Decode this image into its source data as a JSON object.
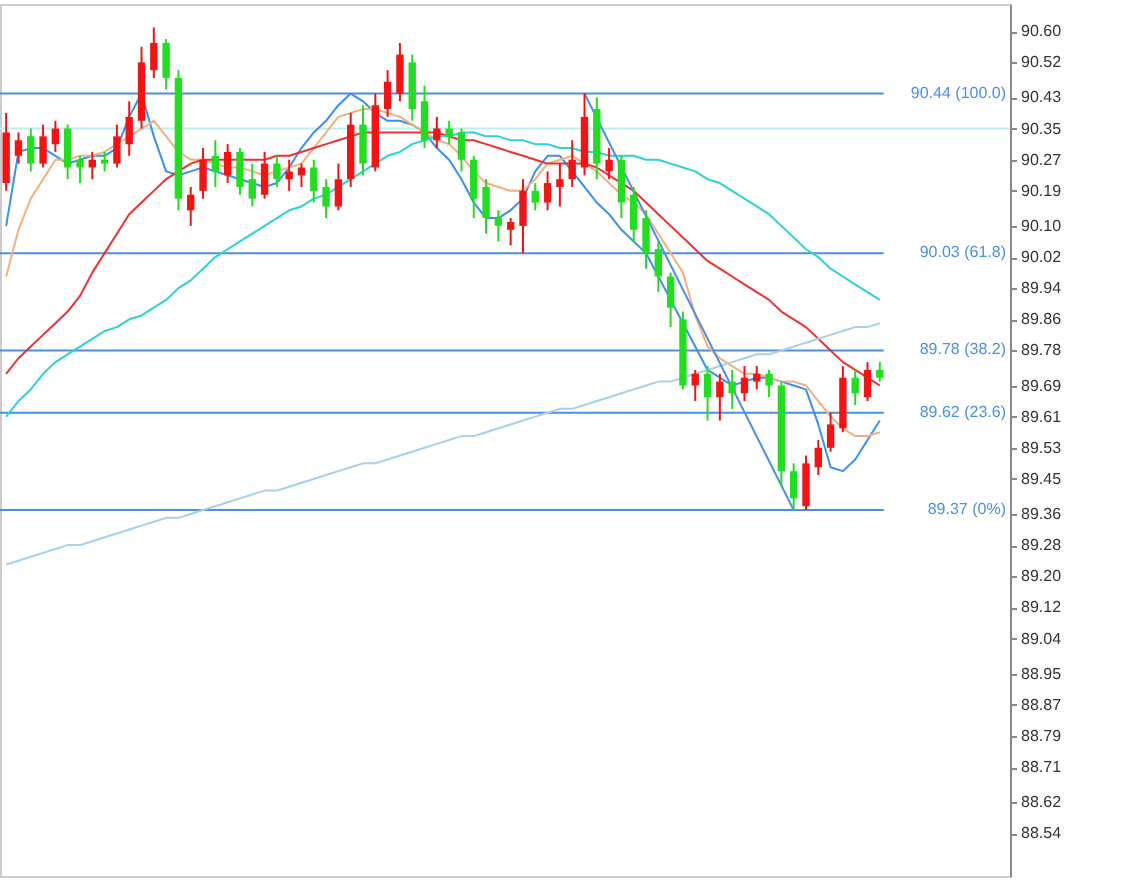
{
  "chart_data": {
    "type": "candlestick",
    "tick_labels": "y",
    "grid": false,
    "ylim": [
      88.43,
      90.67
    ],
    "yticks": [
      {
        "value": 90.6,
        "label": "90.60"
      },
      {
        "value": 90.52,
        "label": "90.52"
      },
      {
        "value": 90.43,
        "label": "90.43"
      },
      {
        "value": 90.35,
        "label": "90.35"
      },
      {
        "value": 90.27,
        "label": "90.27"
      },
      {
        "value": 90.19,
        "label": "90.19"
      },
      {
        "value": 90.1,
        "label": "90.10"
      },
      {
        "value": 90.02,
        "label": "90.02"
      },
      {
        "value": 89.94,
        "label": "89.94"
      },
      {
        "value": 89.86,
        "label": "89.86"
      },
      {
        "value": 89.78,
        "label": "89.78"
      },
      {
        "value": 89.69,
        "label": "89.69"
      },
      {
        "value": 89.61,
        "label": "89.61"
      },
      {
        "value": 89.53,
        "label": "89.53"
      },
      {
        "value": 89.45,
        "label": "89.45"
      },
      {
        "value": 89.36,
        "label": "89.36"
      },
      {
        "value": 89.28,
        "label": "89.28"
      },
      {
        "value": 89.2,
        "label": "89.20"
      },
      {
        "value": 89.12,
        "label": "89.12"
      },
      {
        "value": 89.04,
        "label": "89.04"
      },
      {
        "value": 88.95,
        "label": "88.95"
      },
      {
        "value": 88.87,
        "label": "88.87"
      },
      {
        "value": 88.79,
        "label": "88.79"
      },
      {
        "value": 88.71,
        "label": "88.71"
      },
      {
        "value": 88.62,
        "label": "88.62"
      },
      {
        "value": 88.54,
        "label": "88.54"
      }
    ],
    "categories": [
      null,
      null,
      null,
      null,
      null,
      null,
      null,
      null,
      null,
      null,
      null,
      null,
      null,
      null,
      null,
      null,
      null,
      null,
      null,
      null,
      null,
      null,
      null,
      null,
      null,
      null,
      null,
      null,
      null,
      null,
      null,
      null,
      null,
      null,
      null,
      null,
      null,
      null,
      null,
      null,
      null,
      null,
      null,
      null,
      null,
      null,
      null,
      null,
      null,
      null,
      null,
      null,
      null,
      null,
      null,
      null,
      null,
      null,
      null,
      null,
      null,
      null,
      null,
      null,
      null,
      null,
      null,
      null,
      null,
      null,
      null,
      null
    ],
    "ohlc": [
      [
        90.21,
        90.39,
        90.19,
        90.34
      ],
      [
        90.28,
        90.34,
        90.26,
        90.32
      ],
      [
        90.33,
        90.35,
        90.24,
        90.26
      ],
      [
        90.26,
        90.36,
        90.25,
        90.33
      ],
      [
        90.31,
        90.37,
        90.29,
        90.35
      ],
      [
        90.35,
        90.36,
        90.22,
        90.25
      ],
      [
        90.27,
        90.28,
        90.21,
        90.25
      ],
      [
        90.25,
        90.29,
        90.22,
        90.27
      ],
      [
        90.27,
        90.29,
        90.24,
        90.26
      ],
      [
        90.26,
        90.36,
        90.25,
        90.33
      ],
      [
        90.31,
        90.42,
        90.28,
        90.38
      ],
      [
        90.37,
        90.56,
        90.35,
        90.52
      ],
      [
        90.5,
        90.61,
        90.48,
        90.57
      ],
      [
        90.57,
        90.58,
        90.45,
        90.48
      ],
      [
        90.48,
        90.5,
        90.14,
        90.17
      ],
      [
        90.14,
        90.2,
        90.1,
        90.18
      ],
      [
        90.19,
        90.3,
        90.17,
        90.27
      ],
      [
        90.28,
        90.32,
        90.2,
        90.24
      ],
      [
        90.23,
        90.31,
        90.21,
        90.29
      ],
      [
        90.29,
        90.3,
        90.18,
        90.2
      ],
      [
        90.22,
        90.26,
        90.15,
        90.17
      ],
      [
        90.18,
        90.29,
        90.17,
        90.26
      ],
      [
        90.26,
        90.28,
        90.2,
        90.22
      ],
      [
        90.22,
        90.27,
        90.19,
        90.24
      ],
      [
        90.23,
        90.26,
        90.2,
        90.25
      ],
      [
        90.25,
        90.27,
        90.16,
        90.19
      ],
      [
        90.2,
        90.22,
        90.12,
        90.15
      ],
      [
        90.15,
        90.26,
        90.14,
        90.22
      ],
      [
        90.22,
        90.39,
        90.2,
        90.36
      ],
      [
        90.36,
        90.41,
        90.23,
        90.26
      ],
      [
        90.25,
        90.44,
        90.24,
        90.41
      ],
      [
        90.4,
        90.5,
        90.38,
        90.47
      ],
      [
        90.44,
        90.57,
        90.42,
        90.54
      ],
      [
        90.52,
        90.54,
        90.37,
        90.4
      ],
      [
        90.42,
        90.46,
        90.3,
        90.32
      ],
      [
        90.32,
        90.38,
        90.3,
        90.35
      ],
      [
        90.35,
        90.37,
        90.31,
        90.33
      ],
      [
        90.34,
        90.35,
        90.24,
        90.27
      ],
      [
        90.27,
        90.28,
        90.12,
        90.17
      ],
      [
        90.2,
        90.22,
        90.08,
        90.12
      ],
      [
        90.12,
        90.14,
        90.06,
        90.1
      ],
      [
        90.09,
        90.12,
        90.05,
        90.11
      ],
      [
        90.1,
        90.22,
        90.03,
        90.19
      ],
      [
        90.19,
        90.21,
        90.14,
        90.16
      ],
      [
        90.16,
        90.24,
        90.14,
        90.21
      ],
      [
        90.2,
        90.26,
        90.15,
        90.22
      ],
      [
        90.22,
        90.32,
        90.2,
        90.27
      ],
      [
        90.25,
        90.44,
        90.23,
        90.38
      ],
      [
        90.4,
        90.43,
        90.22,
        90.26
      ],
      [
        90.24,
        90.3,
        90.22,
        90.27
      ],
      [
        90.27,
        90.28,
        90.12,
        90.16
      ],
      [
        90.18,
        90.2,
        90.06,
        90.09
      ],
      [
        90.12,
        90.14,
        89.99,
        90.03
      ],
      [
        90.04,
        90.06,
        89.93,
        89.97
      ],
      [
        89.97,
        89.98,
        89.84,
        89.89
      ],
      [
        89.86,
        89.88,
        89.68,
        89.69
      ],
      [
        89.69,
        89.73,
        89.65,
        89.72
      ],
      [
        89.72,
        89.74,
        89.6,
        89.66
      ],
      [
        89.66,
        89.72,
        89.6,
        89.7
      ],
      [
        89.7,
        89.73,
        89.63,
        89.67
      ],
      [
        89.67,
        89.74,
        89.65,
        89.71
      ],
      [
        89.7,
        89.74,
        89.68,
        89.72
      ],
      [
        89.72,
        89.73,
        89.66,
        89.69
      ],
      [
        89.69,
        89.7,
        89.43,
        89.47
      ],
      [
        89.47,
        89.49,
        89.37,
        89.4
      ],
      [
        89.38,
        89.51,
        89.37,
        89.49
      ],
      [
        89.48,
        89.55,
        89.46,
        89.53
      ],
      [
        89.53,
        89.62,
        89.52,
        89.59
      ],
      [
        89.58,
        89.74,
        89.57,
        89.71
      ],
      [
        89.71,
        89.73,
        89.64,
        89.67
      ],
      [
        89.66,
        89.75,
        89.65,
        89.73
      ],
      [
        89.73,
        89.75,
        89.7,
        89.71
      ]
    ],
    "series": [
      {
        "type": "line",
        "color": "#3b8fef",
        "values": [
          90.1,
          90.29,
          90.3,
          90.3,
          90.28,
          90.26,
          90.27,
          90.28,
          90.28,
          90.3,
          90.38,
          90.44,
          90.33,
          90.24,
          90.23,
          90.24,
          90.25,
          90.24,
          90.23,
          90.22,
          90.21,
          90.2,
          90.21,
          90.25,
          90.3,
          90.34,
          90.37,
          90.41,
          90.44,
          90.42,
          90.39,
          90.37,
          90.37,
          90.36,
          90.34,
          90.3,
          90.27,
          90.22,
          90.16,
          90.12,
          90.12,
          90.14,
          90.17,
          90.24,
          90.28,
          90.28,
          90.24,
          90.2,
          90.16,
          90.13,
          90.09,
          90.06,
          90.03,
          89.97,
          89.91,
          89.85,
          89.79,
          89.73,
          89.71,
          89.69,
          89.7,
          89.71,
          89.71,
          89.7,
          89.69,
          89.68,
          89.59,
          89.48,
          89.47,
          89.5,
          89.55,
          89.6
        ]
      },
      {
        "type": "line",
        "color": "#f0b080",
        "values": [
          89.97,
          90.09,
          90.17,
          90.22,
          90.27,
          90.27,
          90.28,
          90.28,
          90.29,
          90.31,
          90.33,
          90.35,
          90.37,
          90.33,
          90.29,
          90.27,
          90.27,
          90.26,
          90.25,
          90.25,
          90.24,
          90.23,
          90.24,
          90.25,
          90.26,
          90.3,
          90.34,
          90.38,
          90.39,
          90.4,
          90.4,
          90.39,
          90.38,
          90.36,
          90.34,
          90.32,
          90.31,
          90.28,
          90.24,
          90.21,
          90.2,
          90.19,
          90.19,
          90.22,
          90.26,
          90.27,
          90.28,
          90.26,
          90.24,
          90.21,
          90.18,
          90.16,
          90.13,
          90.08,
          90.03,
          89.98,
          89.87,
          89.79,
          89.76,
          89.74,
          89.72,
          89.72,
          89.71,
          89.7,
          89.7,
          89.69,
          89.65,
          89.61,
          89.58,
          89.56,
          89.56,
          89.57
        ]
      },
      {
        "type": "line",
        "color": "#ee3030",
        "values": [
          89.72,
          89.76,
          89.79,
          89.82,
          89.85,
          89.88,
          89.92,
          89.98,
          90.03,
          90.08,
          90.13,
          90.16,
          90.19,
          90.22,
          90.24,
          90.26,
          90.27,
          90.27,
          90.27,
          90.27,
          90.27,
          90.27,
          90.28,
          90.28,
          90.29,
          90.3,
          90.31,
          90.32,
          90.33,
          90.34,
          90.34,
          90.34,
          90.34,
          90.34,
          90.34,
          90.34,
          90.33,
          90.32,
          90.32,
          90.31,
          90.3,
          90.29,
          90.28,
          90.27,
          90.26,
          90.26,
          90.26,
          90.26,
          90.25,
          90.23,
          90.21,
          90.19,
          90.16,
          90.13,
          90.1,
          90.07,
          90.04,
          90.01,
          89.99,
          89.97,
          89.95,
          89.93,
          89.91,
          89.88,
          89.86,
          89.84,
          89.81,
          89.78,
          89.75,
          89.73,
          89.71,
          89.69
        ]
      },
      {
        "type": "line",
        "color": "#30d0d8",
        "values": [
          89.61,
          89.65,
          89.68,
          89.72,
          89.75,
          89.77,
          89.79,
          89.81,
          89.83,
          89.84,
          89.86,
          89.87,
          89.89,
          89.91,
          89.94,
          89.96,
          89.99,
          90.02,
          90.04,
          90.06,
          90.08,
          90.1,
          90.12,
          90.14,
          90.15,
          90.17,
          90.18,
          90.2,
          90.22,
          90.24,
          90.26,
          90.28,
          90.29,
          90.31,
          90.32,
          90.33,
          90.33,
          90.34,
          90.34,
          90.33,
          90.33,
          90.32,
          90.32,
          90.31,
          90.31,
          90.3,
          90.3,
          90.29,
          90.29,
          90.28,
          90.28,
          90.28,
          90.27,
          90.27,
          90.26,
          90.25,
          90.24,
          90.22,
          90.21,
          90.19,
          90.17,
          90.15,
          90.13,
          90.1,
          90.07,
          90.04,
          90.02,
          89.99,
          89.97,
          89.95,
          89.93,
          89.91
        ]
      },
      {
        "type": "line",
        "color": "#a8d0e8",
        "values": [
          89.23,
          89.24,
          89.25,
          89.26,
          89.27,
          89.28,
          89.28,
          89.29,
          89.3,
          89.31,
          89.32,
          89.33,
          89.34,
          89.35,
          89.35,
          89.36,
          89.37,
          89.38,
          89.39,
          89.4,
          89.41,
          89.42,
          89.42,
          89.43,
          89.44,
          89.45,
          89.46,
          89.47,
          89.48,
          89.49,
          89.49,
          89.5,
          89.51,
          89.52,
          89.53,
          89.54,
          89.55,
          89.56,
          89.56,
          89.57,
          89.58,
          89.59,
          89.6,
          89.61,
          89.62,
          89.63,
          89.63,
          89.64,
          89.65,
          89.66,
          89.67,
          89.68,
          89.69,
          89.7,
          89.7,
          89.71,
          89.72,
          89.73,
          89.74,
          89.75,
          89.76,
          89.77,
          89.77,
          89.78,
          89.79,
          89.8,
          89.81,
          89.82,
          89.83,
          89.84,
          89.84,
          89.85
        ]
      },
      {
        "type": "line",
        "color": "#4a90e2",
        "values": [
          null,
          null,
          null,
          null,
          null,
          null,
          null,
          null,
          null,
          null,
          null,
          null,
          null,
          null,
          null,
          null,
          null,
          null,
          null,
          null,
          null,
          null,
          null,
          null,
          null,
          null,
          null,
          null,
          null,
          null,
          null,
          null,
          null,
          null,
          null,
          null,
          null,
          null,
          null,
          null,
          null,
          null,
          null,
          null,
          null,
          null,
          null,
          90.44,
          null,
          null,
          null,
          null,
          null,
          null,
          null,
          null,
          null,
          null,
          null,
          null,
          null,
          null,
          null,
          null,
          89.37,
          null,
          null,
          null,
          null,
          null,
          null,
          null
        ]
      }
    ],
    "ref_lines": [
      {
        "axis": "y",
        "value": 90.44,
        "label": "90.44 (100.0)",
        "color": "#4a90e2"
      },
      {
        "axis": "y",
        "value": 90.03,
        "label": "90.03 (61.8)",
        "color": "#4a90e2"
      },
      {
        "axis": "y",
        "value": 89.78,
        "label": "89.78 (38.2)",
        "color": "#4a90e2"
      },
      {
        "axis": "y",
        "value": 89.62,
        "label": "89.62 (23.6)",
        "color": "#4a90e2"
      },
      {
        "axis": "y",
        "value": 89.37,
        "label": "89.37 (0%)",
        "color": "#4a90e2"
      },
      {
        "axis": "y",
        "value": 90.35,
        "label": null,
        "color": "#bfeeee"
      }
    ]
  }
}
